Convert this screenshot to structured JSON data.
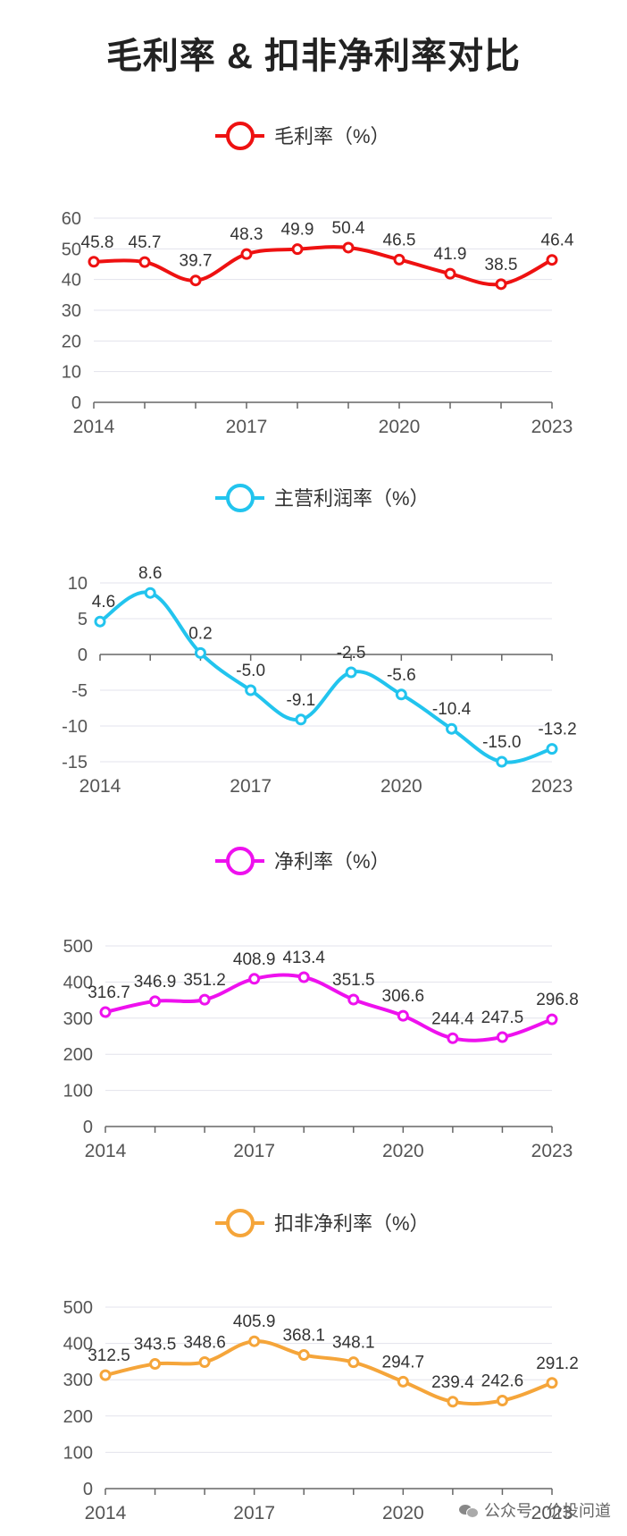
{
  "title": "毛利率 & 扣非净利率对比",
  "watermark": "公众号 · 价投问道",
  "chart_data": [
    {
      "type": "line",
      "title": "毛利率（%）",
      "color": "#ee1111",
      "x": [
        "2014",
        "2015",
        "2016",
        "2017",
        "2018",
        "2019",
        "2020",
        "2021",
        "2022",
        "2023"
      ],
      "x_tick_labels": [
        "2014",
        "2017",
        "2020",
        "2023"
      ],
      "values": [
        45.8,
        45.7,
        39.7,
        48.3,
        49.9,
        50.4,
        46.5,
        41.9,
        38.5,
        46.4
      ],
      "value_labels": [
        "45.8",
        "45.7",
        "39.7",
        "48.3",
        "49.9",
        "50.4",
        "46.5",
        "41.9",
        "38.5",
        "46.4"
      ],
      "ylim": [
        0,
        60
      ],
      "yticks": [
        "0",
        "10",
        "20",
        "30",
        "40",
        "50",
        "60"
      ]
    },
    {
      "type": "line",
      "title": "主营利润率（%）",
      "color": "#22c4ee",
      "x": [
        "2014",
        "2015",
        "2016",
        "2017",
        "2018",
        "2019",
        "2020",
        "2021",
        "2022",
        "2023"
      ],
      "x_tick_labels": [
        "2014",
        "2017",
        "2020",
        "2023"
      ],
      "values": [
        4.6,
        8.6,
        0.2,
        -5.0,
        -9.1,
        -2.5,
        -5.6,
        -10.4,
        -15.0,
        -13.2
      ],
      "value_labels": [
        "4.6",
        "8.6",
        "0.2",
        "-5.0",
        "-9.1",
        "-2.5",
        "-5.6",
        "-10.4",
        "-15.0",
        "-13.2"
      ],
      "ylim": [
        -15,
        10
      ],
      "yticks": [
        "-15",
        "-10",
        "-5",
        "0",
        "5",
        "10"
      ]
    },
    {
      "type": "line",
      "title": "净利率（%）",
      "color": "#ee11ee",
      "x": [
        "2014",
        "2015",
        "2016",
        "2017",
        "2018",
        "2019",
        "2020",
        "2021",
        "2022",
        "2023"
      ],
      "x_tick_labels": [
        "2014",
        "2017",
        "2020",
        "2023"
      ],
      "values": [
        316.7,
        346.9,
        351.2,
        408.9,
        413.4,
        351.5,
        306.6,
        244.4,
        247.5,
        296.8
      ],
      "value_labels": [
        "316.7",
        "346.9",
        "351.2",
        "408.9",
        "413.4",
        "351.5",
        "306.6",
        "244.4",
        "247.5",
        "296.8"
      ],
      "ylim": [
        0,
        500
      ],
      "yticks": [
        "0",
        "100",
        "200",
        "300",
        "400",
        "500"
      ]
    },
    {
      "type": "line",
      "title": "扣非净利率（%）",
      "color": "#f5a53a",
      "x": [
        "2014",
        "2015",
        "2016",
        "2017",
        "2018",
        "2019",
        "2020",
        "2021",
        "2022",
        "2023"
      ],
      "x_tick_labels": [
        "2014",
        "2017",
        "2020",
        "2023"
      ],
      "values": [
        312.5,
        343.5,
        348.6,
        405.9,
        368.1,
        348.1,
        294.7,
        239.4,
        242.6,
        291.2
      ],
      "value_labels": [
        "312.5",
        "343.5",
        "348.6",
        "405.9",
        "368.1",
        "348.1",
        "294.7",
        "239.4",
        "242.6",
        "291.2"
      ],
      "ylim": [
        0,
        500
      ],
      "yticks": [
        "0",
        "100",
        "200",
        "300",
        "400",
        "500"
      ]
    }
  ]
}
